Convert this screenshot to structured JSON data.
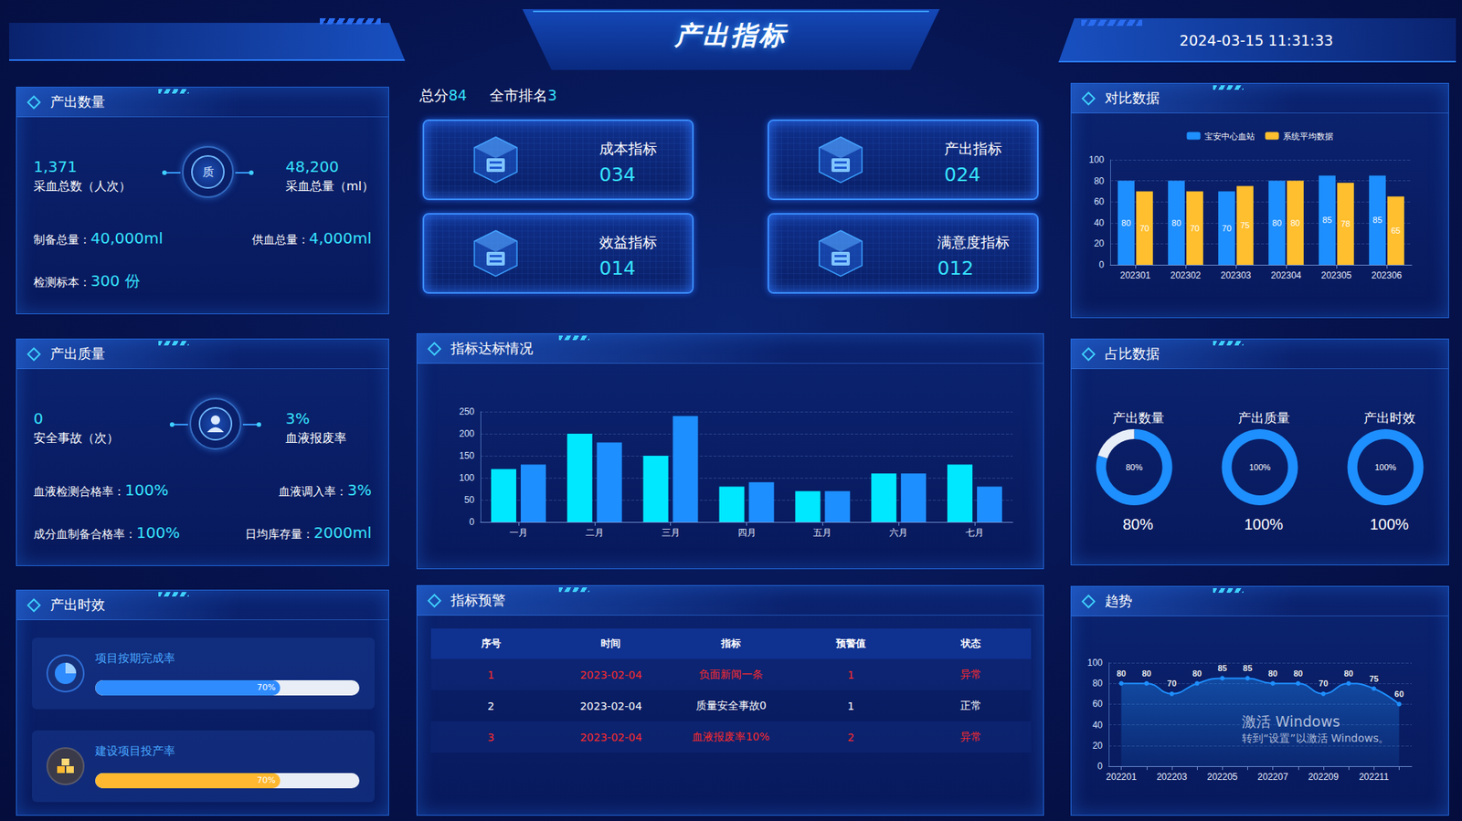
{
  "header": {
    "title": "产出指标",
    "datetime": "2024-03-15 11:31:33"
  },
  "score": {
    "total_label": "总分",
    "total": "84",
    "rank_label": "全市排名",
    "rank": "3"
  },
  "cards": [
    {
      "label": "成本指标",
      "value": "034"
    },
    {
      "label": "产出指标",
      "value": "024"
    },
    {
      "label": "效益指标",
      "value": "014"
    },
    {
      "label": "满意度指标",
      "value": "012"
    }
  ],
  "output_quantity": {
    "title": "产出数量",
    "emblem": "质",
    "left": {
      "value": "1,371",
      "label": "采血总数（人次）"
    },
    "right": {
      "value": "48,200",
      "label": "采血总量（ml）"
    },
    "rows": [
      [
        {
          "label": "制备总量：",
          "value": "40,000ml"
        },
        {
          "label": "供血总量：",
          "value": "4,000ml"
        }
      ],
      [
        {
          "label": "检测标本：",
          "value": "300 份"
        }
      ]
    ]
  },
  "output_quality": {
    "title": "产出质量",
    "left": {
      "value": "0",
      "label": "安全事故（次）"
    },
    "right": {
      "value": "3%",
      "label": "血液报废率"
    },
    "rows": [
      [
        {
          "label": "血液检测合格率：",
          "value": "100%"
        },
        {
          "label": "血液调入率：",
          "value": "3%"
        }
      ],
      [
        {
          "label": "成分血制备合格率：",
          "value": "100%"
        },
        {
          "label": "日均库存量：",
          "value": "2000ml"
        }
      ]
    ]
  },
  "output_timeliness": {
    "title": "产出时效",
    "bars": [
      {
        "label": "项目按期完成率",
        "value": 70,
        "value_label": "70%",
        "color": "#2f8cff"
      },
      {
        "label": "建设项目投产率",
        "value": 70,
        "value_label": "70%",
        "color": "#ffb830"
      }
    ]
  },
  "warning_table": {
    "title": "指标预警",
    "columns": [
      "序号",
      "时间",
      "指标",
      "预警值",
      "状态"
    ],
    "rows": [
      {
        "cells": [
          "1",
          "2023-02-04",
          "负面新闻一条",
          "1",
          "异常"
        ],
        "color": "#ff2a2a"
      },
      {
        "cells": [
          "2",
          "2023-02-04",
          "质量安全事故0",
          "1",
          "正常"
        ],
        "color": "#ffffff"
      },
      {
        "cells": [
          "3",
          "2023-02-04",
          "血液报废率10%",
          "2",
          "异常"
        ],
        "color": "#ff2a2a"
      }
    ]
  },
  "watermark": [
    "激活 Windows",
    "转到“设置”以激活 Windows。"
  ],
  "chart_data": [
    {
      "type": "bar",
      "title": "对比数据",
      "categories": [
        "202301",
        "202302",
        "202303",
        "202304",
        "202305",
        "202306"
      ],
      "series": [
        {
          "name": "宝安中心血站",
          "color": "#1e8fff",
          "values": [
            80,
            80,
            70,
            80,
            85,
            85
          ]
        },
        {
          "name": "系统平均数据",
          "color": "#ffbf2e",
          "values": [
            70,
            70,
            75,
            80,
            78,
            65
          ]
        }
      ],
      "ylim": [
        0,
        100
      ],
      "yticks": [
        0,
        20,
        40,
        60,
        80,
        100
      ],
      "grid": true,
      "legend": "top",
      "data_labels": true
    },
    {
      "type": "bar",
      "title": "指标达标情况",
      "categories": [
        "一月",
        "二月",
        "三月",
        "四月",
        "五月",
        "六月",
        "七月"
      ],
      "series": [
        {
          "color": "#00e8ff",
          "values": [
            120,
            200,
            150,
            80,
            70,
            110,
            130
          ]
        },
        {
          "color": "#1e8fff",
          "values": [
            130,
            180,
            240,
            90,
            70,
            110,
            80
          ]
        }
      ],
      "ylim": [
        0,
        250
      ],
      "yticks": [
        0,
        50,
        100,
        150,
        200,
        250
      ],
      "grid": true
    },
    {
      "type": "pie",
      "title": "占比数据",
      "categories": [
        "产出数量",
        "产出质量",
        "产出时效"
      ],
      "values": [
        80,
        100,
        100
      ],
      "value_labels": [
        "80%",
        "100%",
        "100%"
      ],
      "color": "#1e8fff"
    },
    {
      "type": "line",
      "title": "趋势",
      "categories": [
        "202201",
        null,
        "202203",
        null,
        "202205",
        null,
        "202207",
        null,
        "202209",
        null,
        "202211",
        null
      ],
      "values": [
        80,
        80,
        70,
        80,
        85,
        85,
        80,
        80,
        70,
        80,
        75,
        60
      ],
      "ylim": [
        0,
        100
      ],
      "yticks": [
        0,
        20,
        40,
        60,
        80,
        100
      ],
      "grid": true,
      "data_labels": true,
      "color": "#1e8fff",
      "marker": "circle"
    }
  ]
}
